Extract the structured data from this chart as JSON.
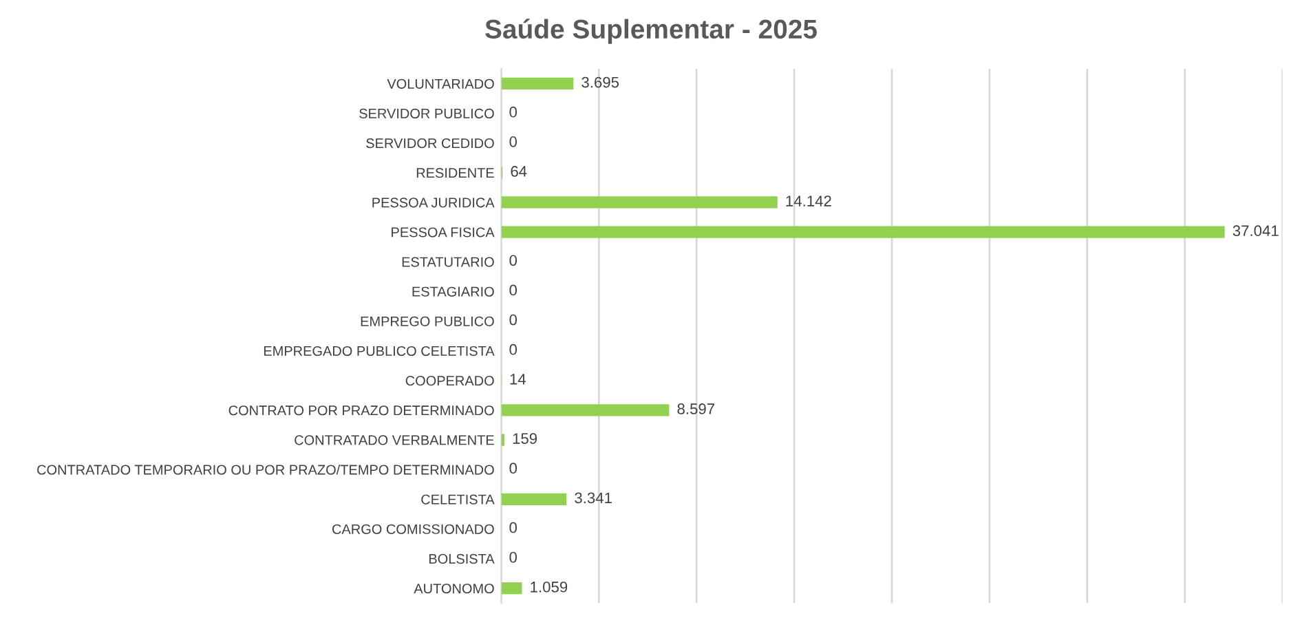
{
  "chart_data": {
    "type": "bar",
    "orientation": "horizontal",
    "title": "Saúde Suplementar - 2025",
    "categories": [
      "VOLUNTARIADO",
      "SERVIDOR PUBLICO",
      "SERVIDOR CEDIDO",
      "RESIDENTE",
      "PESSOA JURIDICA",
      "PESSOA FISICA",
      "ESTATUTARIO",
      "ESTAGIARIO",
      "EMPREGO PUBLICO",
      "EMPREGADO PUBLICO CELETISTA",
      "COOPERADO",
      "CONTRATO POR PRAZO DETERMINADO",
      "CONTRATADO VERBALMENTE",
      "CONTRATADO TEMPORARIO OU POR PRAZO/TEMPO DETERMINADO",
      "CELETISTA",
      "CARGO COMISSIONADO",
      "BOLSISTA",
      "AUTONOMO"
    ],
    "values": [
      3695,
      0,
      0,
      64,
      14142,
      37041,
      0,
      0,
      0,
      0,
      14,
      8597,
      159,
      0,
      3341,
      0,
      0,
      1059
    ],
    "value_labels": [
      "3.695",
      "0",
      "0",
      "64",
      "14.142",
      "37.041",
      "0",
      "0",
      "0",
      "0",
      "14",
      "8.597",
      "159",
      "0",
      "3.341",
      "0",
      "0",
      "1.059"
    ],
    "color": "#92d050",
    "xlim": [
      0,
      40000
    ],
    "xticks": [
      {
        "value": 0,
        "label": null
      },
      {
        "value": 5000,
        "label": null
      },
      {
        "value": 10000,
        "label": null
      },
      {
        "value": 15000,
        "label": null
      },
      {
        "value": 20000,
        "label": null
      },
      {
        "value": 25000,
        "label": null
      },
      {
        "value": 30000,
        "label": null
      },
      {
        "value": 35000,
        "label": null
      },
      {
        "value": 40000,
        "label": null
      }
    ],
    "tick_labels": "y",
    "grid": "x"
  }
}
